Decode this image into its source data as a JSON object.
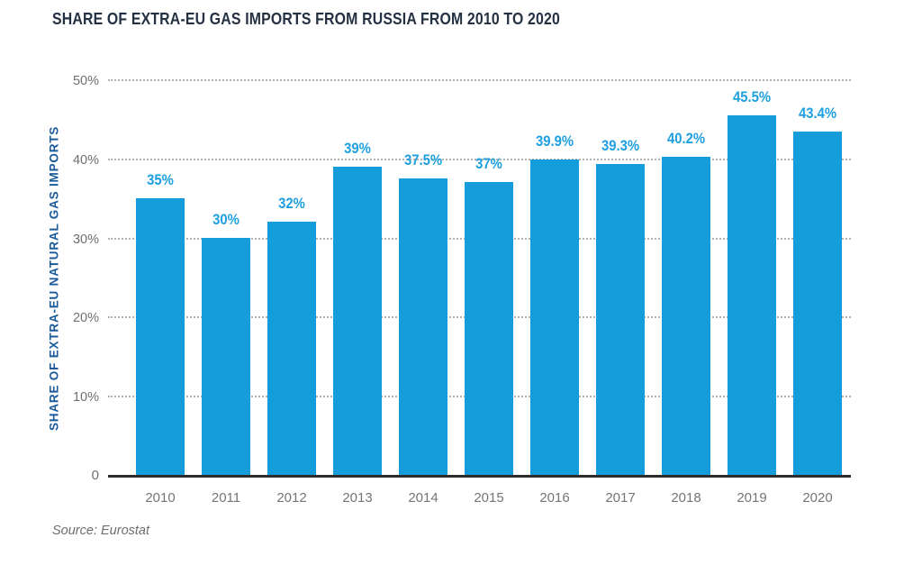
{
  "header": {
    "title": "SHARE OF EXTRA-EU GAS IMPORTS FROM RUSSIA FROM 2010 TO 2020"
  },
  "footer": {
    "source_label": "Source: Eurostat"
  },
  "chart_data": {
    "type": "bar",
    "title": "SHARE OF EXTRA-EU GAS IMPORTS FROM RUSSIA FROM 2010 TO 2020",
    "categories": [
      "2010",
      "2011",
      "2012",
      "2013",
      "2014",
      "2015",
      "2016",
      "2017",
      "2018",
      "2019",
      "2020"
    ],
    "values": [
      35,
      30,
      32,
      39,
      37.5,
      37,
      39.9,
      39.3,
      40.2,
      45.5,
      43.4
    ],
    "value_labels": [
      "35%",
      "30%",
      "32%",
      "39%",
      "37.5%",
      "37%",
      "39.9%",
      "39.3%",
      "40.2%",
      "45.5%",
      "43.4%"
    ],
    "xlabel": "",
    "ylabel": "SHARE OF EXTRA-EU NATURAL GAS IMPORTS",
    "ylim": [
      0,
      50
    ],
    "yticks": [
      {
        "value": 0,
        "label": "0"
      },
      {
        "value": 10,
        "label": "10%"
      },
      {
        "value": 20,
        "label": "20%"
      },
      {
        "value": 30,
        "label": "30%"
      },
      {
        "value": 40,
        "label": "40%"
      },
      {
        "value": 50,
        "label": "50%"
      }
    ],
    "grid": "horizontal-dotted",
    "legend": "none",
    "source": "Source: Eurostat",
    "colors": {
      "bar": "#149CDB",
      "value_label": "#1E9FDF",
      "title": "#243142",
      "y_axis_title": "#1A5A9B",
      "tick_label": "#6F6F6F",
      "grid_line": "#B3B3B3",
      "baseline": "#2B2B2B",
      "source_text": "#6E6E6E"
    }
  }
}
